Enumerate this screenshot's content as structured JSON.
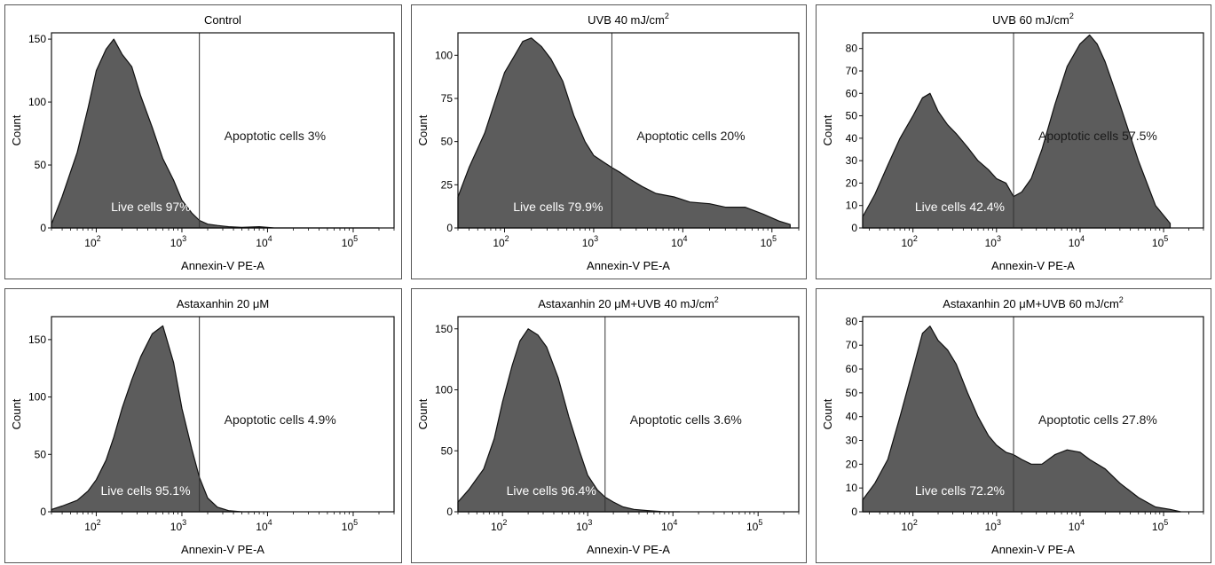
{
  "figure": {
    "xlabel": "Annexin-V PE-A",
    "ylabel": "Count",
    "x_tick_labels": [
      {
        "base": "10",
        "exp": "2"
      },
      {
        "base": "10",
        "exp": "3"
      },
      {
        "base": "10",
        "exp": "4"
      },
      {
        "base": "10",
        "exp": "5"
      }
    ]
  },
  "colors": {
    "fill": "#5c5c5c",
    "outline": "#111111",
    "gate": "#333333",
    "live_text": "#ffffff",
    "apoptotic_text": "#1a1a1a"
  },
  "chart_data": [
    {
      "type": "area",
      "title": "Control",
      "title_parts": [],
      "x_scale": "log",
      "xlim": [
        30,
        300000
      ],
      "ylim": [
        0,
        155
      ],
      "yticks": [
        0,
        50,
        100,
        150
      ],
      "gate_x": 1600,
      "live_label": "Live cells 97%",
      "apoptotic_label": "Apoptotic cells 3%",
      "x": [
        30,
        40,
        60,
        80,
        100,
        130,
        160,
        200,
        260,
        330,
        450,
        600,
        800,
        1000,
        1300,
        1600,
        2000,
        2600,
        3500,
        5000,
        8000,
        12000,
        20000,
        50000,
        200000
      ],
      "y": [
        3,
        25,
        60,
        95,
        125,
        142,
        150,
        138,
        128,
        105,
        80,
        55,
        38,
        22,
        12,
        6,
        3,
        2,
        1,
        0.5,
        1,
        0,
        0,
        0,
        0
      ]
    },
    {
      "type": "area",
      "title": "",
      "title_parts": [
        "UVB 40 mJ/cm",
        "2"
      ],
      "x_scale": "log",
      "xlim": [
        30,
        200000
      ],
      "ylim": [
        0,
        113
      ],
      "yticks": [
        0,
        25,
        50,
        75,
        100
      ],
      "gate_x": 1600,
      "live_label": "Live cells 79.9%",
      "apoptotic_label": "Apoptotic cells 20%",
      "x": [
        30,
        40,
        60,
        80,
        100,
        130,
        160,
        200,
        260,
        330,
        450,
        600,
        800,
        1000,
        1300,
        1600,
        2000,
        2600,
        3500,
        5000,
        8000,
        12000,
        20000,
        30000,
        50000,
        80000,
        120000,
        160000
      ],
      "y": [
        18,
        35,
        55,
        75,
        90,
        100,
        108,
        110,
        105,
        98,
        85,
        65,
        50,
        42,
        38,
        35,
        32,
        28,
        24,
        20,
        18,
        15,
        14,
        12,
        12,
        8,
        4,
        2
      ]
    },
    {
      "type": "area",
      "title": "",
      "title_parts": [
        "UVB 60 mJ/cm",
        "2"
      ],
      "x_scale": "log",
      "xlim": [
        25,
        300000
      ],
      "ylim": [
        0,
        87
      ],
      "yticks": [
        0,
        10,
        20,
        30,
        40,
        50,
        60,
        70,
        80
      ],
      "gate_x": 1600,
      "live_label": "Live cells 42.4%",
      "apoptotic_label": "Apoptotic cells 57.5%",
      "x": [
        25,
        35,
        50,
        70,
        100,
        130,
        160,
        200,
        260,
        330,
        450,
        600,
        800,
        1000,
        1300,
        1600,
        2000,
        2600,
        3500,
        5000,
        7000,
        10000,
        13000,
        16000,
        20000,
        30000,
        50000,
        80000,
        120000
      ],
      "y": [
        5,
        15,
        28,
        40,
        50,
        58,
        60,
        52,
        46,
        42,
        36,
        30,
        26,
        22,
        20,
        14,
        16,
        22,
        35,
        55,
        72,
        82,
        86,
        82,
        74,
        55,
        30,
        10,
        2
      ]
    },
    {
      "type": "area",
      "title": "Astaxanhin 20 μM",
      "title_parts": [],
      "x_scale": "log",
      "xlim": [
        30,
        300000
      ],
      "ylim": [
        0,
        170
      ],
      "yticks": [
        0,
        50,
        100,
        150
      ],
      "gate_x": 1600,
      "live_label": "Live cells 95.1%",
      "apoptotic_label": "Apoptotic cells 4.9%",
      "x": [
        30,
        40,
        60,
        80,
        100,
        130,
        160,
        200,
        260,
        330,
        450,
        600,
        800,
        1000,
        1300,
        1600,
        2000,
        2600,
        3500,
        5000,
        8000
      ],
      "y": [
        2,
        5,
        10,
        18,
        28,
        45,
        65,
        90,
        115,
        135,
        155,
        162,
        130,
        90,
        55,
        30,
        12,
        4,
        1,
        0,
        0
      ]
    },
    {
      "type": "area",
      "title": "",
      "title_parts": [
        "Astaxanhin 20 μM+UVB 40 mJ/cm",
        "2"
      ],
      "x_scale": "log",
      "xlim": [
        30,
        300000
      ],
      "ylim": [
        0,
        160
      ],
      "yticks": [
        0,
        50,
        100,
        150
      ],
      "gate_x": 1600,
      "live_label": "Live cells 96.4%",
      "apoptotic_label": "Apoptotic cells 3.6%",
      "x": [
        30,
        40,
        60,
        80,
        100,
        130,
        160,
        200,
        260,
        330,
        450,
        600,
        800,
        1000,
        1300,
        1600,
        2000,
        2600,
        3500,
        5000,
        8000,
        12000
      ],
      "y": [
        8,
        18,
        35,
        60,
        90,
        120,
        140,
        150,
        145,
        135,
        110,
        78,
        50,
        30,
        18,
        12,
        8,
        4,
        2,
        1,
        0,
        0
      ]
    },
    {
      "type": "area",
      "title": "",
      "title_parts": [
        "Astaxanhin 20 μM+UVB 60 mJ/cm",
        "2"
      ],
      "x_scale": "log",
      "xlim": [
        25,
        300000
      ],
      "ylim": [
        0,
        82
      ],
      "yticks": [
        0,
        10,
        20,
        30,
        40,
        50,
        60,
        70,
        80
      ],
      "gate_x": 1600,
      "live_label": "Live cells 72.2%",
      "apoptotic_label": "Apoptotic cells 27.8%",
      "x": [
        25,
        35,
        50,
        70,
        100,
        130,
        160,
        200,
        260,
        330,
        450,
        600,
        800,
        1000,
        1300,
        1600,
        2000,
        2600,
        3500,
        5000,
        7000,
        10000,
        13000,
        20000,
        30000,
        50000,
        80000,
        120000,
        160000
      ],
      "y": [
        5,
        12,
        22,
        40,
        60,
        75,
        78,
        72,
        68,
        62,
        50,
        40,
        32,
        28,
        25,
        24,
        22,
        20,
        20,
        24,
        26,
        25,
        22,
        18,
        12,
        6,
        2,
        1,
        0
      ]
    }
  ]
}
